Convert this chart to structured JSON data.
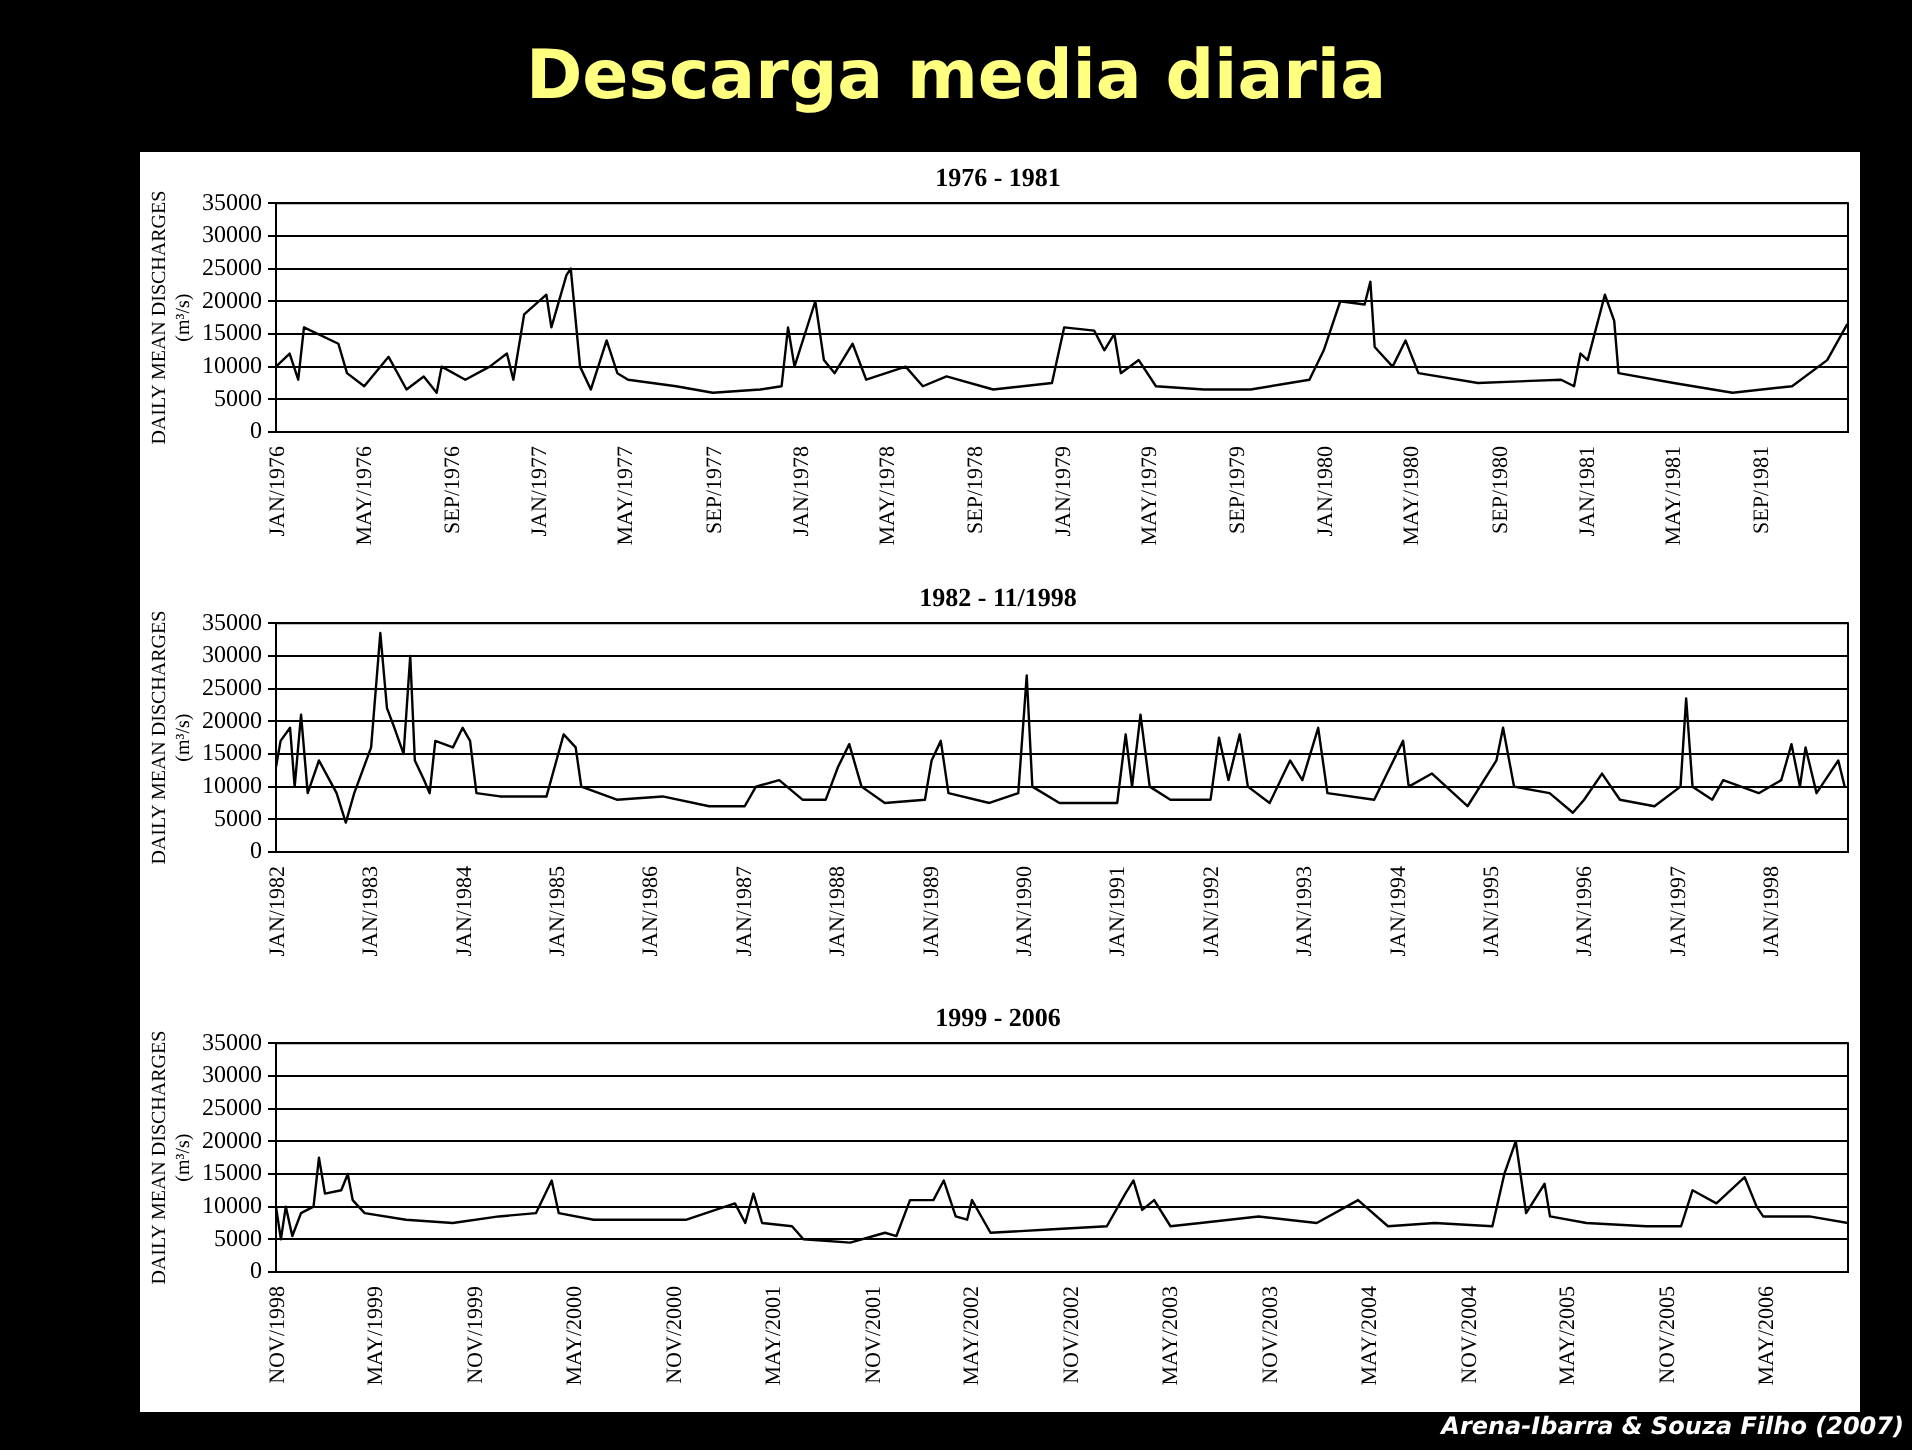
{
  "chart_data": [
    {
      "type": "line",
      "title": "Descarga media diaria",
      "subtitle": "1976 - 1981",
      "ylabel": "DAILY MEAN DISCHARGES (m³/s)",
      "grid": "y",
      "xlim": [
        "1976-01-01",
        "1982-01-01"
      ],
      "ylim": [
        0,
        35000
      ],
      "yticks": [
        0,
        5000,
        10000,
        15000,
        20000,
        25000,
        30000,
        35000
      ],
      "xticks": [
        {
          "value": "1976-01",
          "label": "JAN/1976"
        },
        {
          "value": "1976-05",
          "label": "MAY/1976"
        },
        {
          "value": "1976-09",
          "label": "SEP/1976"
        },
        {
          "value": "1977-01",
          "label": "JAN/1977"
        },
        {
          "value": "1977-05",
          "label": "MAY/1977"
        },
        {
          "value": "1977-09",
          "label": "SEP/1977"
        },
        {
          "value": "1978-01",
          "label": "JAN/1978"
        },
        {
          "value": "1978-05",
          "label": "MAY/1978"
        },
        {
          "value": "1978-09",
          "label": "SEP/1978"
        },
        {
          "value": "1979-01",
          "label": "JAN/1979"
        },
        {
          "value": "1979-05",
          "label": "MAY/1979"
        },
        {
          "value": "1979-09",
          "label": "SEP/1979"
        },
        {
          "value": "1980-01",
          "label": "JAN/1980"
        },
        {
          "value": "1980-05",
          "label": "MAY/1980"
        },
        {
          "value": "1980-09",
          "label": "SEP/1980"
        },
        {
          "value": "1981-01",
          "label": "JAN/1981"
        },
        {
          "value": "1981-05",
          "label": "MAY/1981"
        },
        {
          "value": "1981-09",
          "label": "SEP/1981"
        }
      ],
      "x": [
        "1976-01-01",
        "1976-01-20",
        "1976-02-01",
        "1976-02-09",
        "1976-03-28",
        "1976-04-09",
        "1976-05-03",
        "1976-06-06",
        "1976-07-01",
        "1976-07-25",
        "1976-08-12",
        "1976-08-19",
        "1976-09-21",
        "1976-10-25",
        "1976-11-18",
        "1976-11-27",
        "1976-12-12",
        "1977-01-12",
        "1977-01-19",
        "1977-02-09",
        "1977-02-15",
        "1977-02-28",
        "1977-03-15",
        "1977-04-06",
        "1977-04-21",
        "1977-05-06",
        "1977-07-12",
        "1977-09-01",
        "1977-11-06",
        "1977-12-06",
        "1977-12-15",
        "1977-12-24",
        "1978-01-22",
        "1978-02-03",
        "1978-02-18",
        "1978-03-15",
        "1978-04-03",
        "1978-05-28",
        "1978-06-21",
        "1978-07-24",
        "1978-09-27",
        "1978-12-18",
        "1979-01-04",
        "1979-02-15",
        "1979-03-01",
        "1979-03-15",
        "1979-03-24",
        "1979-04-18",
        "1979-05-12",
        "1979-07-18",
        "1979-09-21",
        "1979-12-12",
        "1980-01-01",
        "1980-01-24",
        "1980-02-27",
        "1980-03-06",
        "1980-03-12",
        "1980-04-06",
        "1980-04-24",
        "1980-05-12",
        "1980-08-03",
        "1980-11-27",
        "1980-12-15",
        "1980-12-24",
        "1981-01-03",
        "1981-01-27",
        "1981-02-09",
        "1981-02-15",
        "1981-05-03",
        "1981-07-24",
        "1981-10-15",
        "1981-12-03",
        "1981-12-31"
      ],
      "series": [
        {
          "color": "#000000",
          "values": [
            10000,
            12000,
            8000,
            16000,
            13500,
            9000,
            7000,
            11500,
            6500,
            8500,
            6000,
            10000,
            8000,
            10000,
            12000,
            8000,
            18000,
            21000,
            16000,
            24000,
            25000,
            10000,
            6500,
            14000,
            9000,
            8000,
            7000,
            6000,
            6500,
            7000,
            16000,
            10000,
            20000,
            11000,
            9000,
            13500,
            8000,
            10000,
            7000,
            8500,
            6500,
            7500,
            16000,
            15500,
            12500,
            15000,
            9000,
            11000,
            7000,
            6500,
            6500,
            8000,
            12500,
            20000,
            19500,
            23000,
            13000,
            10000,
            14000,
            9000,
            7500,
            8000,
            7000,
            12000,
            11000,
            21000,
            17000,
            9000,
            7500,
            6000,
            7000,
            11000,
            16500
          ]
        }
      ]
    },
    {
      "type": "line",
      "title": "1982 - 11/1998",
      "ylabel": "DAILY MEAN DISCHARGES (m³/s)",
      "grid": "y",
      "xlim": [
        "1982-01-01",
        "1998-11-01"
      ],
      "ylim": [
        0,
        35000
      ],
      "yticks": [
        0,
        5000,
        10000,
        15000,
        20000,
        25000,
        30000,
        35000
      ],
      "xticks": [
        {
          "value": "1982-01",
          "label": "JAN/1982"
        },
        {
          "value": "1983-01",
          "label": "JAN/1983"
        },
        {
          "value": "1984-01",
          "label": "JAN/1984"
        },
        {
          "value": "1985-01",
          "label": "JAN/1985"
        },
        {
          "value": "1986-01",
          "label": "JAN/1986"
        },
        {
          "value": "1987-01",
          "label": "JAN/1987"
        },
        {
          "value": "1988-01",
          "label": "JAN/1988"
        },
        {
          "value": "1989-01",
          "label": "JAN/1989"
        },
        {
          "value": "1990-01",
          "label": "JAN/1990"
        },
        {
          "value": "1991-01",
          "label": "JAN/1991"
        },
        {
          "value": "1992-01",
          "label": "JAN/1992"
        },
        {
          "value": "1993-01",
          "label": "JAN/1993"
        },
        {
          "value": "1994-01",
          "label": "JAN/1994"
        },
        {
          "value": "1995-01",
          "label": "JAN/1995"
        },
        {
          "value": "1996-01",
          "label": "JAN/1996"
        },
        {
          "value": "1997-01",
          "label": "JAN/1997"
        },
        {
          "value": "1998-01",
          "label": "JAN/1998"
        }
      ],
      "x": [
        "1982-01-01",
        "1982-01-19",
        "1982-02-25",
        "1982-03-15",
        "1982-04-09",
        "1982-05-05",
        "1982-06-18",
        "1982-08-26",
        "1982-10-01",
        "1982-11-03",
        "1983-01-08",
        "1983-02-13",
        "1983-03-11",
        "1983-04-09",
        "1983-05-15",
        "1983-06-10",
        "1983-06-28",
        "1983-08-03",
        "1983-08-25",
        "1983-09-16",
        "1983-11-24",
        "1984-01-01",
        "1984-01-30",
        "1984-02-24",
        "1984-05-26",
        "1984-11-24",
        "1985-01-30",
        "1985-03-18",
        "1985-04-09",
        "1985-08-26",
        "1986-02-21",
        "1986-08-22",
        "1987-01-08",
        "1987-02-21",
        "1987-05-23",
        "1987-08-22",
        "1987-11-21",
        "1988-01-08",
        "1988-02-21",
        "1988-04-09",
        "1988-07-09",
        "1988-12-13",
        "1989-01-08",
        "1989-02-13",
        "1989-03-15",
        "1989-08-22",
        "1989-12-13",
        "1990-01-15",
        "1990-02-06",
        "1990-05-23",
        "1991-01-04",
        "1991-02-06",
        "1991-03-03",
        "1991-04-05",
        "1991-05-11",
        "1991-07-31",
        "1992-01-04",
        "1992-02-06",
        "1992-03-14",
        "1992-04-27",
        "1992-05-29",
        "1992-08-22",
        "1992-11-10",
        "1992-12-28",
        "1993-02-28",
        "1993-04-05",
        "1993-10-05",
        "1994-01-26",
        "1994-02-17",
        "1994-05-19",
        "1994-10-05",
        "1995-01-26",
        "1995-02-21",
        "1995-04-05",
        "1995-08-22",
        "1995-11-21",
        "1996-01-04",
        "1996-03-14",
        "1996-05-23",
        "1996-10-05",
        "1997-01-15",
        "1997-02-06",
        "1997-03-03",
        "1997-05-19",
        "1997-07-01",
        "1997-11-17",
        "1998-02-13",
        "1998-03-25",
        "1998-04-27",
        "1998-05-19",
        "1998-07-01",
        "1998-09-24",
        "1998-10-19"
      ],
      "series": [
        {
          "color": "#000000",
          "values": [
            13000,
            17000,
            19000,
            10000,
            21000,
            9000,
            14000,
            9000,
            4500,
            9000,
            16000,
            33500,
            22000,
            19000,
            15000,
            30000,
            14000,
            11000,
            9000,
            17000,
            16000,
            19000,
            17000,
            9000,
            8500,
            8500,
            18000,
            16000,
            10000,
            8000,
            8500,
            7000,
            7000,
            10000,
            11000,
            8000,
            8000,
            13000,
            16500,
            10000,
            7500,
            8000,
            14000,
            17000,
            9000,
            7500,
            9000,
            27000,
            10000,
            7500,
            7500,
            18000,
            10000,
            21000,
            10000,
            8000,
            8000,
            17500,
            11000,
            18000,
            10000,
            7500,
            14000,
            11000,
            19000,
            9000,
            8000,
            17000,
            10000,
            12000,
            7000,
            14000,
            19000,
            10000,
            9000,
            6000,
            8000,
            12000,
            8000,
            7000,
            10000,
            23500,
            10000,
            8000,
            11000,
            9000,
            11000,
            16500,
            10000,
            16000,
            9000,
            14000,
            10000
          ]
        }
      ]
    },
    {
      "type": "line",
      "title": "1999 - 2006",
      "ylabel": "DAILY MEAN DISCHARGES (m³/s)",
      "grid": "y",
      "annotations": [
        "Arena-Ibarra & Souza Filho (2007)"
      ],
      "xlim": [
        "1998-11-01",
        "2006-10-01"
      ],
      "ylim": [
        0,
        35000
      ],
      "yticks": [
        0,
        5000,
        10000,
        15000,
        20000,
        25000,
        30000,
        35000
      ],
      "xticks": [
        {
          "value": "1998-11",
          "label": "NOV/1998"
        },
        {
          "value": "1999-05",
          "label": "MAY/1999"
        },
        {
          "value": "1999-11",
          "label": "NOV/1999"
        },
        {
          "value": "2000-05",
          "label": "MAY/2000"
        },
        {
          "value": "2000-11",
          "label": "NOV/2000"
        },
        {
          "value": "2001-05",
          "label": "MAY/2001"
        },
        {
          "value": "2001-11",
          "label": "NOV/2001"
        },
        {
          "value": "2002-05",
          "label": "MAY/2002"
        },
        {
          "value": "2002-11",
          "label": "NOV/2002"
        },
        {
          "value": "2003-05",
          "label": "MAY/2003"
        },
        {
          "value": "2003-11",
          "label": "NOV/2003"
        },
        {
          "value": "2004-05",
          "label": "MAY/2004"
        },
        {
          "value": "2004-11",
          "label": "NOV/2004"
        },
        {
          "value": "2005-05",
          "label": "MAY/2005"
        },
        {
          "value": "2005-11",
          "label": "NOV/2005"
        },
        {
          "value": "2006-05",
          "label": "MAY/2006"
        }
      ],
      "x": [
        "1998-11-01",
        "1998-11-10",
        "1998-11-19",
        "1998-12-01",
        "1998-12-17",
        "1999-01-09",
        "1999-01-19",
        "1999-01-30",
        "1999-03-01",
        "1999-03-13",
        "1999-03-22",
        "1999-04-13",
        "1999-06-28",
        "1999-09-22",
        "1999-12-16",
        "2000-02-22",
        "2000-03-22",
        "2000-04-04",
        "2000-06-07",
        "2000-09-01",
        "2000-11-25",
        "2001-02-22",
        "2001-03-13",
        "2001-03-28",
        "2001-04-13",
        "2001-06-07",
        "2001-06-28",
        "2001-09-22",
        "2001-11-25",
        "2001-12-16",
        "2002-01-10",
        "2002-02-22",
        "2002-03-13",
        "2002-04-04",
        "2002-04-25",
        "2002-05-04",
        "2002-06-07",
        "2002-09-22",
        "2003-01-07",
        "2003-02-10",
        "2003-02-25",
        "2003-03-13",
        "2003-04-04",
        "2003-05-04",
        "2003-06-28",
        "2003-10-13",
        "2004-01-28",
        "2004-04-13",
        "2004-06-07",
        "2004-09-01",
        "2004-12-16",
        "2005-01-07",
        "2005-01-28",
        "2005-02-16",
        "2005-03-22",
        "2005-04-01",
        "2005-06-07",
        "2005-09-25",
        "2005-11-28",
        "2005-12-19",
        "2006-02-01",
        "2006-03-25",
        "2006-04-16",
        "2006-04-28",
        "2006-07-22",
        "2006-10-01"
      ],
      "series": [
        {
          "color": "#000000",
          "values": [
            10000,
            5000,
            10000,
            5500,
            9000,
            10000,
            17500,
            12000,
            12500,
            15000,
            11000,
            9000,
            8000,
            7500,
            8500,
            9000,
            14000,
            9000,
            8000,
            8000,
            8000,
            10500,
            7500,
            12000,
            7500,
            7000,
            5000,
            4500,
            6000,
            5500,
            11000,
            11000,
            14000,
            8500,
            8000,
            11000,
            6000,
            6500,
            7000,
            12000,
            14000,
            9500,
            11000,
            7000,
            7500,
            8500,
            7500,
            11000,
            7000,
            7500,
            7000,
            15000,
            20000,
            9000,
            13500,
            8500,
            7500,
            7000,
            7000,
            12500,
            10500,
            14500,
            10000,
            8500,
            8500,
            7500
          ]
        }
      ]
    }
  ]
}
